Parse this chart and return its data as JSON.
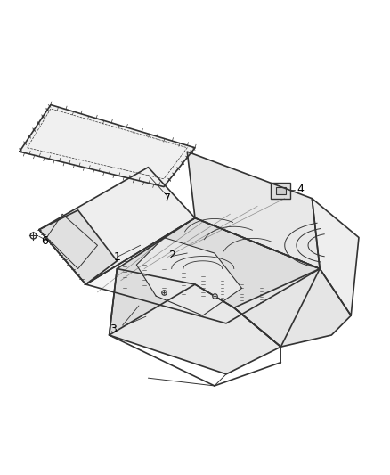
{
  "title": "",
  "background_color": "#ffffff",
  "line_color": "#333333",
  "label_color": "#000000",
  "figsize": [
    4.38,
    5.33
  ],
  "dpi": 100
}
